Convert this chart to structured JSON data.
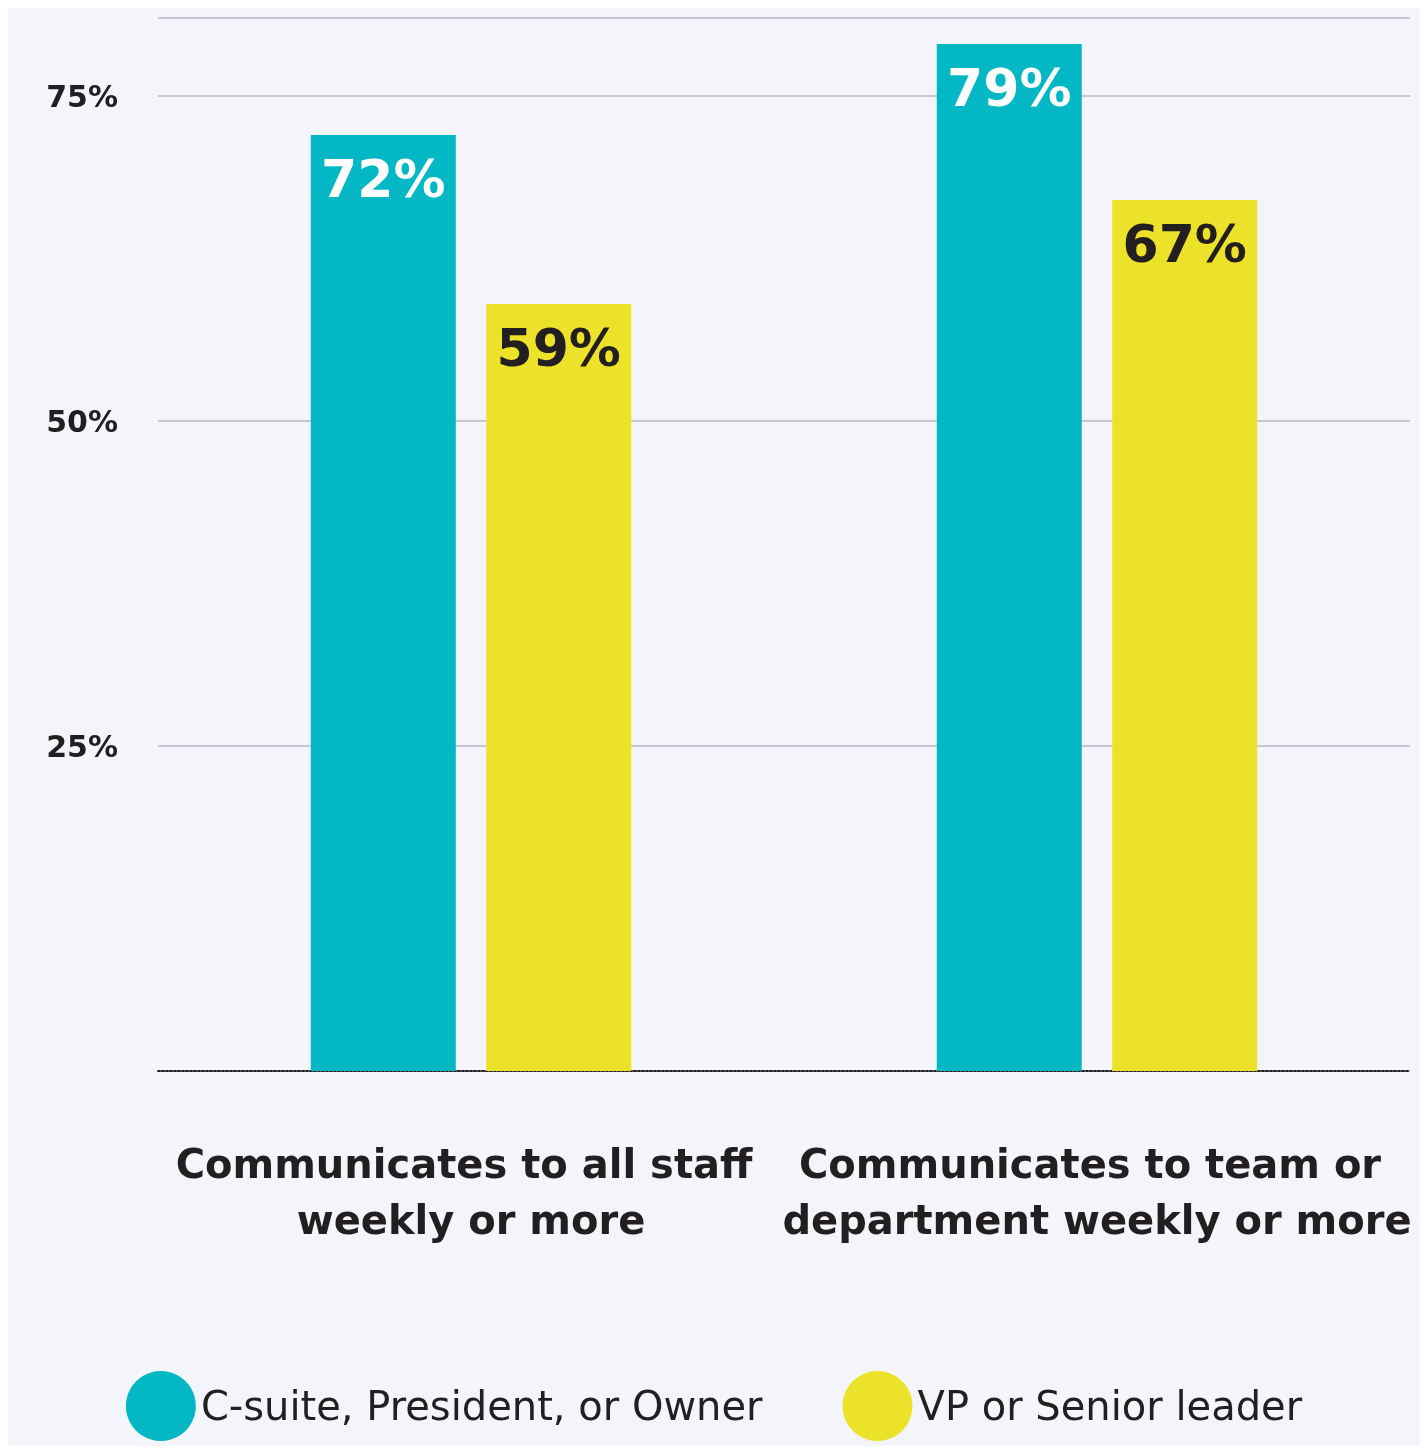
{
  "chart_data": {
    "type": "bar",
    "categories": [
      "Communicates to all staff weekly or more",
      "Communicates to team or department weekly or more"
    ],
    "series": [
      {
        "name": "C-suite, President, or Owner",
        "color": "#03b8c4",
        "values": [
          72,
          79
        ],
        "value_labels": [
          "72%",
          "79%"
        ]
      },
      {
        "name": "VP or Senior leader",
        "color": "#ece22a",
        "values": [
          59,
          67
        ],
        "value_labels": [
          "59%",
          "67%"
        ]
      }
    ],
    "ylim": [
      0,
      81
    ],
    "yticks": [
      {
        "value": 25,
        "label": "25%"
      },
      {
        "value": 50,
        "label": "50%"
      },
      {
        "value": 75,
        "label": "75%"
      }
    ],
    "grid": "y",
    "legend": "bottom"
  }
}
